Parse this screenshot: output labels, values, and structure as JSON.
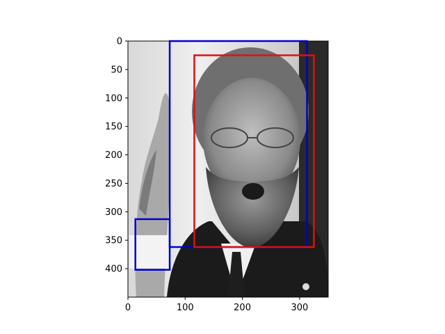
{
  "image_description_free": true,
  "image": {
    "width_units": 350,
    "height_units": 450,
    "grayscale": true
  },
  "axes": {
    "x_ticks": [
      0,
      100,
      200,
      300
    ],
    "y_ticks": [
      0,
      50,
      100,
      150,
      200,
      250,
      300,
      350,
      400
    ],
    "xlim": [
      0,
      350
    ],
    "ylim": [
      450,
      0
    ]
  },
  "boxes": [
    {
      "label": "blue-box-large",
      "color": "#0000cc",
      "x0": 73,
      "y0": 0,
      "x1": 313,
      "y1": 362
    },
    {
      "label": "red-box",
      "color": "#dd1111",
      "x0": 116,
      "y0": 25,
      "x1": 325,
      "y1": 362
    },
    {
      "label": "blue-box-small",
      "color": "#0000cc",
      "x0": 13,
      "y0": 313,
      "x1": 73,
      "y1": 402
    }
  ]
}
